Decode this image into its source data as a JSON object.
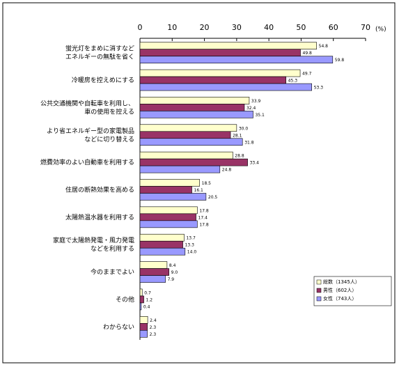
{
  "chart_data": {
    "type": "bar",
    "orientation": "horizontal",
    "unit_label": "(%)",
    "categories": [
      "蛍光灯をまめに消すなど\nエネルギーの無駄を省く",
      "冷暖房を控えめにする",
      "公共交通機関や自転車を利用し、\n車の使用を控える",
      "より省エネルギー型の家電製品\nなどに切り替える",
      "燃費効率のよい自動車を利用する",
      "住居の断熱効果を高める",
      "太陽熱温水器を利用する",
      "家庭で太陽熱発電・風力発電\nなどを利用する",
      "今のままでよい",
      "その他",
      "わからない"
    ],
    "series": [
      {
        "name": "総数（1345人）",
        "color": "#ffffcc",
        "values": [
          54.8,
          49.7,
          33.9,
          30.0,
          28.8,
          18.5,
          17.8,
          13.7,
          8.4,
          0.7,
          2.4
        ],
        "value_labels": [
          "54.8",
          "49.7",
          "33.9",
          "30.0",
          "28.8",
          "18.5",
          "17.8",
          "13.7",
          "8.4",
          "0.7",
          "2.4"
        ]
      },
      {
        "name": "男性（602人）",
        "color": "#993366",
        "values": [
          49.8,
          45.3,
          32.4,
          28.1,
          33.4,
          16.1,
          17.4,
          13.3,
          9.0,
          1.2,
          2.3
        ],
        "value_labels": [
          "49.8",
          "45.3",
          "32.4",
          "28.1",
          "33.4",
          "16.1",
          "17.4",
          "13.3",
          "9.0",
          "1.2",
          "2.3"
        ]
      },
      {
        "name": "女性（743人）",
        "color": "#9999ff",
        "values": [
          59.8,
          53.3,
          35.1,
          31.8,
          24.8,
          20.5,
          17.8,
          14.0,
          7.9,
          0.4,
          2.3
        ],
        "value_labels": [
          "59.8",
          "53.3",
          "35.1",
          "31.8",
          "24.8",
          "20.5",
          "17.8",
          "14.0",
          "7.9",
          "0.4",
          "2.3"
        ]
      }
    ],
    "xlim": [
      0,
      70
    ],
    "xticks": [
      0,
      10,
      20,
      30,
      40,
      50,
      60,
      70
    ],
    "legend": "lower right"
  }
}
